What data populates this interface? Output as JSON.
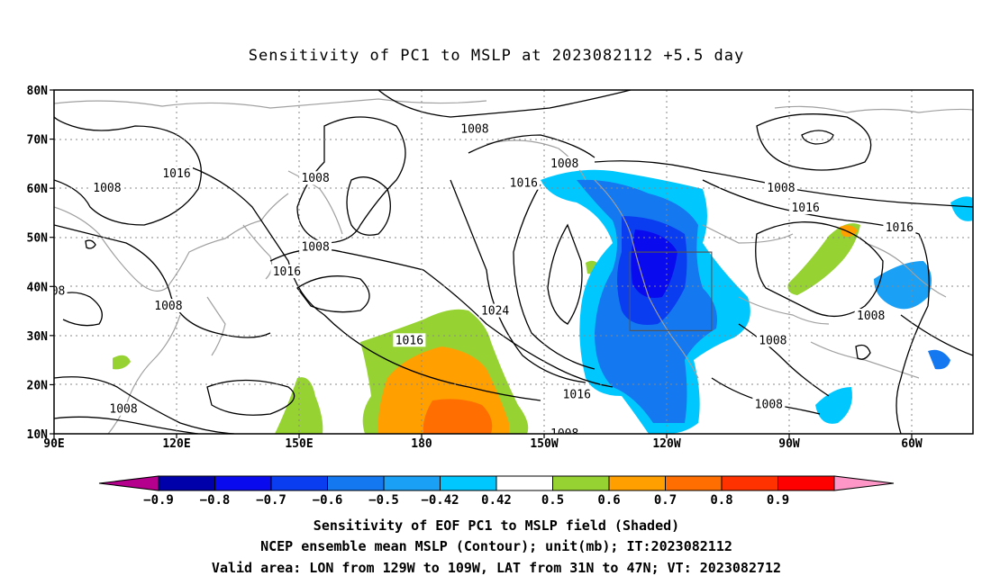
{
  "title": "Sensitivity of PC1 to MSLP at 2023082112 +5.5 day",
  "map": {
    "lat_ticks": [
      "80N",
      "70N",
      "60N",
      "50N",
      "40N",
      "30N",
      "20N",
      "10N"
    ],
    "lon_ticks": [
      "90E",
      "120E",
      "150E",
      "180",
      "150W",
      "120W",
      "90W",
      "60W"
    ],
    "grid": true,
    "valid_area_box": {
      "lon_min": -129,
      "lon_max": -109,
      "lat_min": 31,
      "lat_max": 47
    },
    "contour_labels": [
      {
        "text": "1008",
        "lon": 103,
        "lat": 60
      },
      {
        "text": "1016",
        "lon": 120,
        "lat": 63
      },
      {
        "text": "1008",
        "lon": 154,
        "lat": 62
      },
      {
        "text": "1008",
        "lon": 154,
        "lat": 48
      },
      {
        "text": "1016",
        "lon": 147,
        "lat": 43
      },
      {
        "text": "08",
        "lon": 91,
        "lat": 39
      },
      {
        "text": "1008",
        "lon": 118,
        "lat": 36
      },
      {
        "text": "1008",
        "lon": 107,
        "lat": 15
      },
      {
        "text": "1008",
        "lon": -167,
        "lat": 72
      },
      {
        "text": "1008",
        "lon": -145,
        "lat": 65
      },
      {
        "text": "1016",
        "lon": -155,
        "lat": 61
      },
      {
        "text": "1024",
        "lon": -162,
        "lat": 35
      },
      {
        "text": "1016",
        "lon": 177,
        "lat": 29
      },
      {
        "text": "1016",
        "lon": -142,
        "lat": 18
      },
      {
        "text": "1008",
        "lon": -145,
        "lat": 10
      },
      {
        "text": "1008",
        "lon": -92,
        "lat": 60
      },
      {
        "text": "1016",
        "lon": -86,
        "lat": 56
      },
      {
        "text": "1016",
        "lon": -63,
        "lat": 52
      },
      {
        "text": "1008",
        "lon": -94,
        "lat": 29
      },
      {
        "text": "1008",
        "lon": -95,
        "lat": 16
      },
      {
        "text": "1008",
        "lon": -70,
        "lat": 34
      }
    ]
  },
  "colorbar": {
    "labels": [
      "−0.9",
      "−0.8",
      "−0.7",
      "−0.6",
      "−0.5",
      "−0.42",
      "0.42",
      "0.5",
      "0.6",
      "0.7",
      "0.8",
      "0.9"
    ],
    "colors": [
      "#b4008c",
      "#0000aa",
      "#0a0aee",
      "#0a3cf0",
      "#1478f0",
      "#1aa0f5",
      "#00c8ff",
      "#ffffff",
      "#96d232",
      "#ffa000",
      "#ff6e00",
      "#ff3200",
      "#ff0000",
      "#ff96c8"
    ]
  },
  "caption": {
    "line1": "Sensitivity of EOF PC1 to MSLP field (Shaded)",
    "line2": "NCEP ensemble mean MSLP (Contour); unit(mb); IT:2023082112",
    "line3": "Valid area: LON from 129W to 109W, LAT from 31N to 47N; VT: 2023082712"
  }
}
